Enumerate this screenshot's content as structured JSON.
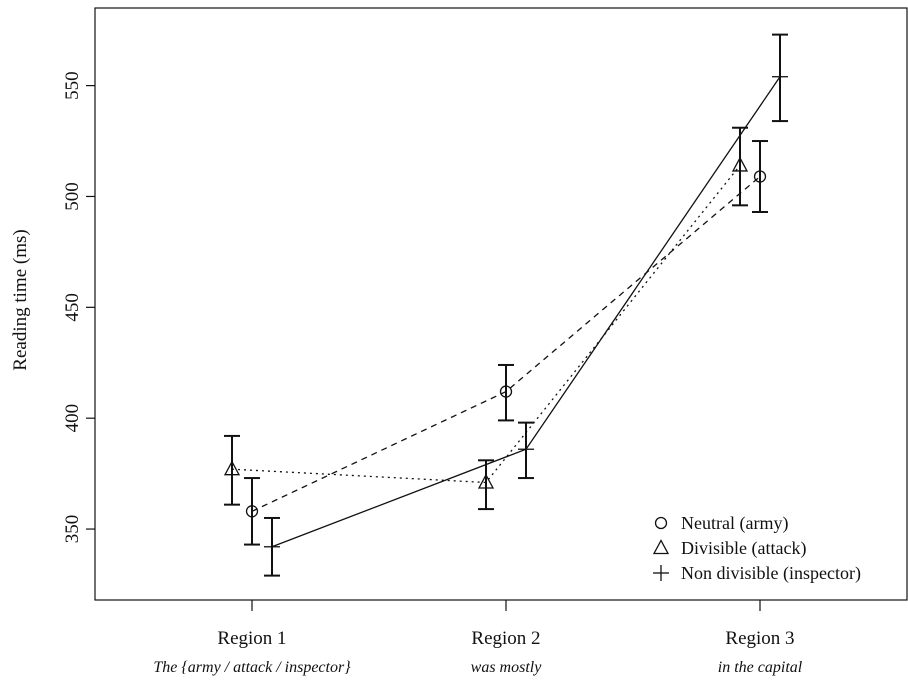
{
  "chart_data": {
    "type": "line",
    "ylabel": "Reading time (ms)",
    "ylim": [
      318,
      585
    ],
    "yticks": [
      350,
      400,
      450,
      500,
      550
    ],
    "categories": [
      {
        "label": "Region 1",
        "sub": "The {army / attack / inspector}"
      },
      {
        "label": "Region 2",
        "sub": "was mostly"
      },
      {
        "label": "Region 3",
        "sub": "in the capital"
      }
    ],
    "series": [
      {
        "name": "Neutral (army)",
        "marker": "circle",
        "dash": "dashed",
        "values": [
          358,
          412,
          509
        ],
        "err_low": [
          343,
          399,
          493
        ],
        "err_high": [
          373,
          424,
          525
        ]
      },
      {
        "name": "Divisible (attack)",
        "marker": "triangle",
        "dash": "dotted",
        "values": [
          377,
          371,
          514
        ],
        "err_low": [
          361,
          359,
          496
        ],
        "err_high": [
          392,
          381,
          531
        ]
      },
      {
        "name": "Non divisible (inspector)",
        "marker": "plus",
        "dash": "solid",
        "values": [
          342,
          386,
          554
        ],
        "err_low": [
          329,
          373,
          534
        ],
        "err_high": [
          355,
          398,
          573
        ]
      }
    ],
    "legend_position": "bottom-right",
    "grid": false
  }
}
